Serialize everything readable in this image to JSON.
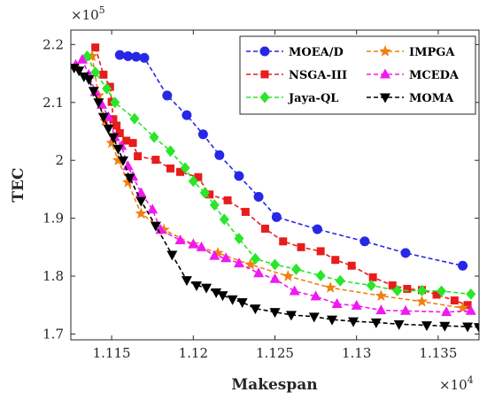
{
  "chart_data": {
    "type": "line",
    "xlabel": "Makespan",
    "ylabel": "TEC",
    "x_multiplier": {
      "base": "×10",
      "exp": "4"
    },
    "y_multiplier": {
      "base": "×10",
      "exp": "5"
    },
    "xlim": [
      11125,
      11375
    ],
    "ylim": [
      1.69,
      2.225
    ],
    "x_ticks": [
      11150,
      11200,
      11250,
      11300,
      11350
    ],
    "x_tick_labels": [
      "1.115",
      "1.12",
      "1.125",
      "1.13",
      "1.135"
    ],
    "y_ticks": [
      1.7,
      1.8,
      1.9,
      2.0,
      2.1,
      2.2
    ],
    "y_tick_labels": [
      "1.7",
      "1.8",
      "1.9",
      "2",
      "2.1",
      "2.2"
    ],
    "grid": false,
    "legend_position": "top-right",
    "series": [
      {
        "name": "MOEA/D",
        "color": "#2727e6",
        "marker": "circle",
        "points": [
          [
            11155,
            2.182
          ],
          [
            11160,
            2.18
          ],
          [
            11165,
            2.179
          ],
          [
            11170,
            2.177
          ],
          [
            11184,
            2.112
          ],
          [
            11196,
            2.078
          ],
          [
            11206,
            2.045
          ],
          [
            11216,
            2.009
          ],
          [
            11228,
            1.973
          ],
          [
            11240,
            1.937
          ],
          [
            11251,
            1.902
          ],
          [
            11276,
            1.881
          ],
          [
            11305,
            1.86
          ],
          [
            11330,
            1.84
          ],
          [
            11365,
            1.818
          ]
        ]
      },
      {
        "name": "NSGA-III",
        "color": "#e81c1c",
        "marker": "square",
        "points": [
          [
            11140,
            2.195
          ],
          [
            11145,
            2.148
          ],
          [
            11149,
            2.127
          ],
          [
            11150,
            2.101
          ],
          [
            11151,
            2.071
          ],
          [
            11153,
            2.06
          ],
          [
            11155,
            2.047
          ],
          [
            11159,
            2.034
          ],
          [
            11163,
            2.03
          ],
          [
            11166,
            2.007
          ],
          [
            11177,
            2.001
          ],
          [
            11186,
            1.986
          ],
          [
            11192,
            1.98
          ],
          [
            11203,
            1.971
          ],
          [
            11210,
            1.941
          ],
          [
            11221,
            1.931
          ],
          [
            11232,
            1.911
          ],
          [
            11244,
            1.882
          ],
          [
            11255,
            1.86
          ],
          [
            11266,
            1.85
          ],
          [
            11278,
            1.843
          ],
          [
            11287,
            1.828
          ],
          [
            11297,
            1.818
          ],
          [
            11310,
            1.798
          ],
          [
            11322,
            1.784
          ],
          [
            11331,
            1.778
          ],
          [
            11340,
            1.776
          ],
          [
            11349,
            1.768
          ],
          [
            11360,
            1.758
          ],
          [
            11368,
            1.75
          ]
        ]
      },
      {
        "name": "IMPGA",
        "color": "#f07f12",
        "marker": "star",
        "points": [
          [
            11138,
            2.18
          ],
          [
            11142,
            2.112
          ],
          [
            11146,
            2.068
          ],
          [
            11150,
            2.03
          ],
          [
            11154,
            2.0
          ],
          [
            11160,
            1.962
          ],
          [
            11168,
            1.908
          ],
          [
            11182,
            1.88
          ],
          [
            11200,
            1.855
          ],
          [
            11215,
            1.84
          ],
          [
            11235,
            1.82
          ],
          [
            11258,
            1.8
          ],
          [
            11284,
            1.78
          ],
          [
            11315,
            1.766
          ],
          [
            11340,
            1.756
          ],
          [
            11365,
            1.745
          ]
        ]
      },
      {
        "name": "Jaya-QL",
        "color": "#29e629",
        "marker": "diamond",
        "points": [
          [
            11135,
            2.18
          ],
          [
            11140,
            2.152
          ],
          [
            11147,
            2.124
          ],
          [
            11152,
            2.1
          ],
          [
            11164,
            2.072
          ],
          [
            11176,
            2.04
          ],
          [
            11186,
            2.016
          ],
          [
            11195,
            1.987
          ],
          [
            11200,
            1.964
          ],
          [
            11207,
            1.944
          ],
          [
            11213,
            1.923
          ],
          [
            11219,
            1.898
          ],
          [
            11228,
            1.865
          ],
          [
            11238,
            1.83
          ],
          [
            11250,
            1.82
          ],
          [
            11263,
            1.812
          ],
          [
            11278,
            1.801
          ],
          [
            11290,
            1.792
          ],
          [
            11309,
            1.784
          ],
          [
            11325,
            1.775
          ],
          [
            11340,
            1.775
          ],
          [
            11352,
            1.774
          ],
          [
            11370,
            1.769
          ]
        ]
      },
      {
        "name": "MCEDA",
        "color": "#f019f0",
        "marker": "triangle-up",
        "points": [
          [
            11128,
            2.165
          ],
          [
            11132,
            2.174
          ],
          [
            11136,
            2.148
          ],
          [
            11140,
            2.118
          ],
          [
            11144,
            2.096
          ],
          [
            11148,
            2.075
          ],
          [
            11152,
            2.04
          ],
          [
            11156,
            2.025
          ],
          [
            11160,
            1.99
          ],
          [
            11163,
            1.972
          ],
          [
            11168,
            1.944
          ],
          [
            11175,
            1.915
          ],
          [
            11180,
            1.88
          ],
          [
            11192,
            1.862
          ],
          [
            11200,
            1.855
          ],
          [
            11205,
            1.85
          ],
          [
            11213,
            1.835
          ],
          [
            11220,
            1.831
          ],
          [
            11228,
            1.822
          ],
          [
            11240,
            1.805
          ],
          [
            11250,
            1.795
          ],
          [
            11262,
            1.774
          ],
          [
            11275,
            1.765
          ],
          [
            11288,
            1.752
          ],
          [
            11300,
            1.749
          ],
          [
            11315,
            1.741
          ],
          [
            11330,
            1.74
          ],
          [
            11355,
            1.738
          ],
          [
            11370,
            1.74
          ]
        ]
      },
      {
        "name": "MOMA",
        "color": "#000000",
        "marker": "triangle-down",
        "points": [
          [
            11127,
            2.16
          ],
          [
            11130,
            2.155
          ],
          [
            11133,
            2.145
          ],
          [
            11136,
            2.14
          ],
          [
            11139,
            2.12
          ],
          [
            11142,
            2.1
          ],
          [
            11145,
            2.075
          ],
          [
            11148,
            2.055
          ],
          [
            11151,
            2.04
          ],
          [
            11154,
            2.02
          ],
          [
            11157,
            2.0
          ],
          [
            11161,
            1.97
          ],
          [
            11168,
            1.93
          ],
          [
            11177,
            1.887
          ],
          [
            11187,
            1.837
          ],
          [
            11196,
            1.793
          ],
          [
            11202,
            1.784
          ],
          [
            11208,
            1.78
          ],
          [
            11214,
            1.772
          ],
          [
            11218,
            1.767
          ],
          [
            11224,
            1.76
          ],
          [
            11230,
            1.755
          ],
          [
            11238,
            1.744
          ],
          [
            11250,
            1.738
          ],
          [
            11260,
            1.733
          ],
          [
            11274,
            1.73
          ],
          [
            11285,
            1.725
          ],
          [
            11298,
            1.722
          ],
          [
            11312,
            1.72
          ],
          [
            11326,
            1.717
          ],
          [
            11343,
            1.715
          ],
          [
            11354,
            1.714
          ],
          [
            11368,
            1.713
          ],
          [
            11375,
            1.712
          ]
        ]
      }
    ]
  }
}
